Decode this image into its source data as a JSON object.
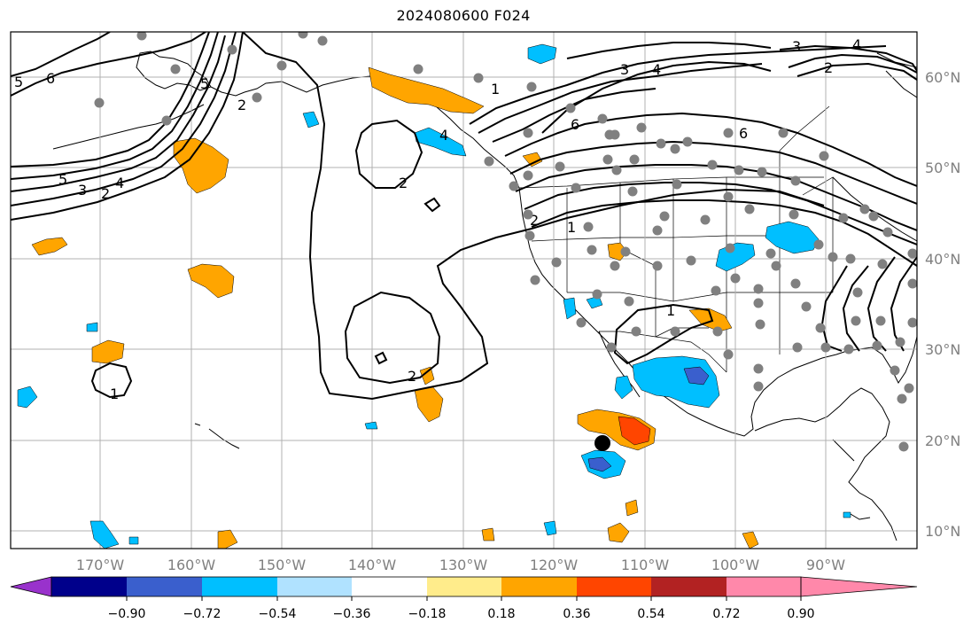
{
  "title": "2024080600 F024",
  "lon_ticks": [
    "170°W",
    "160°W",
    "150°W",
    "140°W",
    "130°W",
    "120°W",
    "110°W",
    "100°W",
    "90°W"
  ],
  "lat_ticks": [
    "60°N",
    "50°N",
    "40°N",
    "30°N",
    "20°N",
    "10°N"
  ],
  "colorbar": {
    "colors": [
      "#9932CC",
      "#00008B",
      "#3A5FCD",
      "#00BFFF",
      "#B0E2FF",
      "#FFFFFF",
      "#FFEC8B",
      "#FFA500",
      "#FF4500",
      "#B22222",
      "#FF88AA"
    ],
    "tick_labels": [
      "−0.90",
      "−0.72",
      "−0.54",
      "−0.36",
      "−0.18",
      "0.18",
      "0.36",
      "0.54",
      "0.72",
      "0.90"
    ]
  },
  "contour_labels": [
    "5",
    "6",
    "5",
    "4",
    "3",
    "2",
    "1",
    "2",
    "2",
    "2",
    "1",
    "1",
    "1",
    "2",
    "3",
    "4",
    "6",
    "3",
    "4",
    "2",
    "5",
    "4",
    "6"
  ],
  "colors": {
    "grid": "#b0b0b0",
    "station": "#808080",
    "contour": "#000000"
  }
}
